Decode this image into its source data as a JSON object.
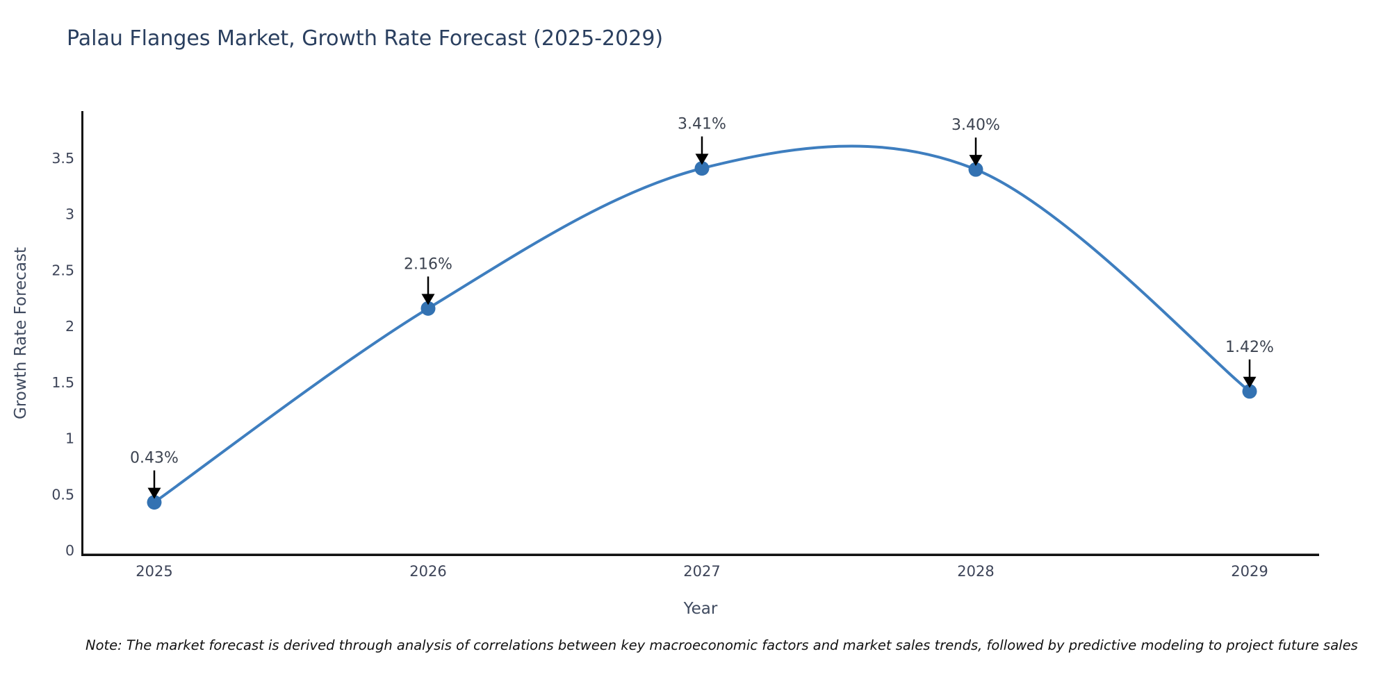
{
  "chart_data": {
    "type": "line",
    "title": "Palau Flanges Market, Growth Rate Forecast (2025-2029)",
    "x": [
      "2025",
      "2026",
      "2027",
      "2028",
      "2029"
    ],
    "series": [
      {
        "name": "Growth Rate Forecast",
        "values": [
          0.43,
          2.16,
          3.41,
          3.4,
          1.42
        ]
      }
    ],
    "point_labels": [
      "0.43%",
      "2.16%",
      "3.41%",
      "3.40%",
      "1.42%"
    ],
    "xlabel": "Year",
    "ylabel": "Growth Rate Forecast",
    "ytick_labels": [
      "0",
      "0.5",
      "1",
      "1.5",
      "2",
      "2.5",
      "3",
      "3.5"
    ],
    "ytick_values": [
      0,
      0.5,
      1,
      1.5,
      2,
      2.5,
      3,
      3.5
    ],
    "ylim": [
      0,
      3.92
    ],
    "line_shape": "spline",
    "grid": false,
    "legend_position": "none",
    "marker_symbol": "circle",
    "annotation_arrow": "down-arrow",
    "colors": {
      "line": "#3e7ebf",
      "marker": "#3372b2",
      "axis": "#111111",
      "title": "#2a3f5f",
      "tick": "#3d4458",
      "annotation": "#3c4350",
      "note": "#111111"
    }
  },
  "page": {
    "note": "Note: The market forecast is derived through analysis of correlations between key macroeconomic factors and market sales trends, followed by predictive modeling to project future sales"
  }
}
